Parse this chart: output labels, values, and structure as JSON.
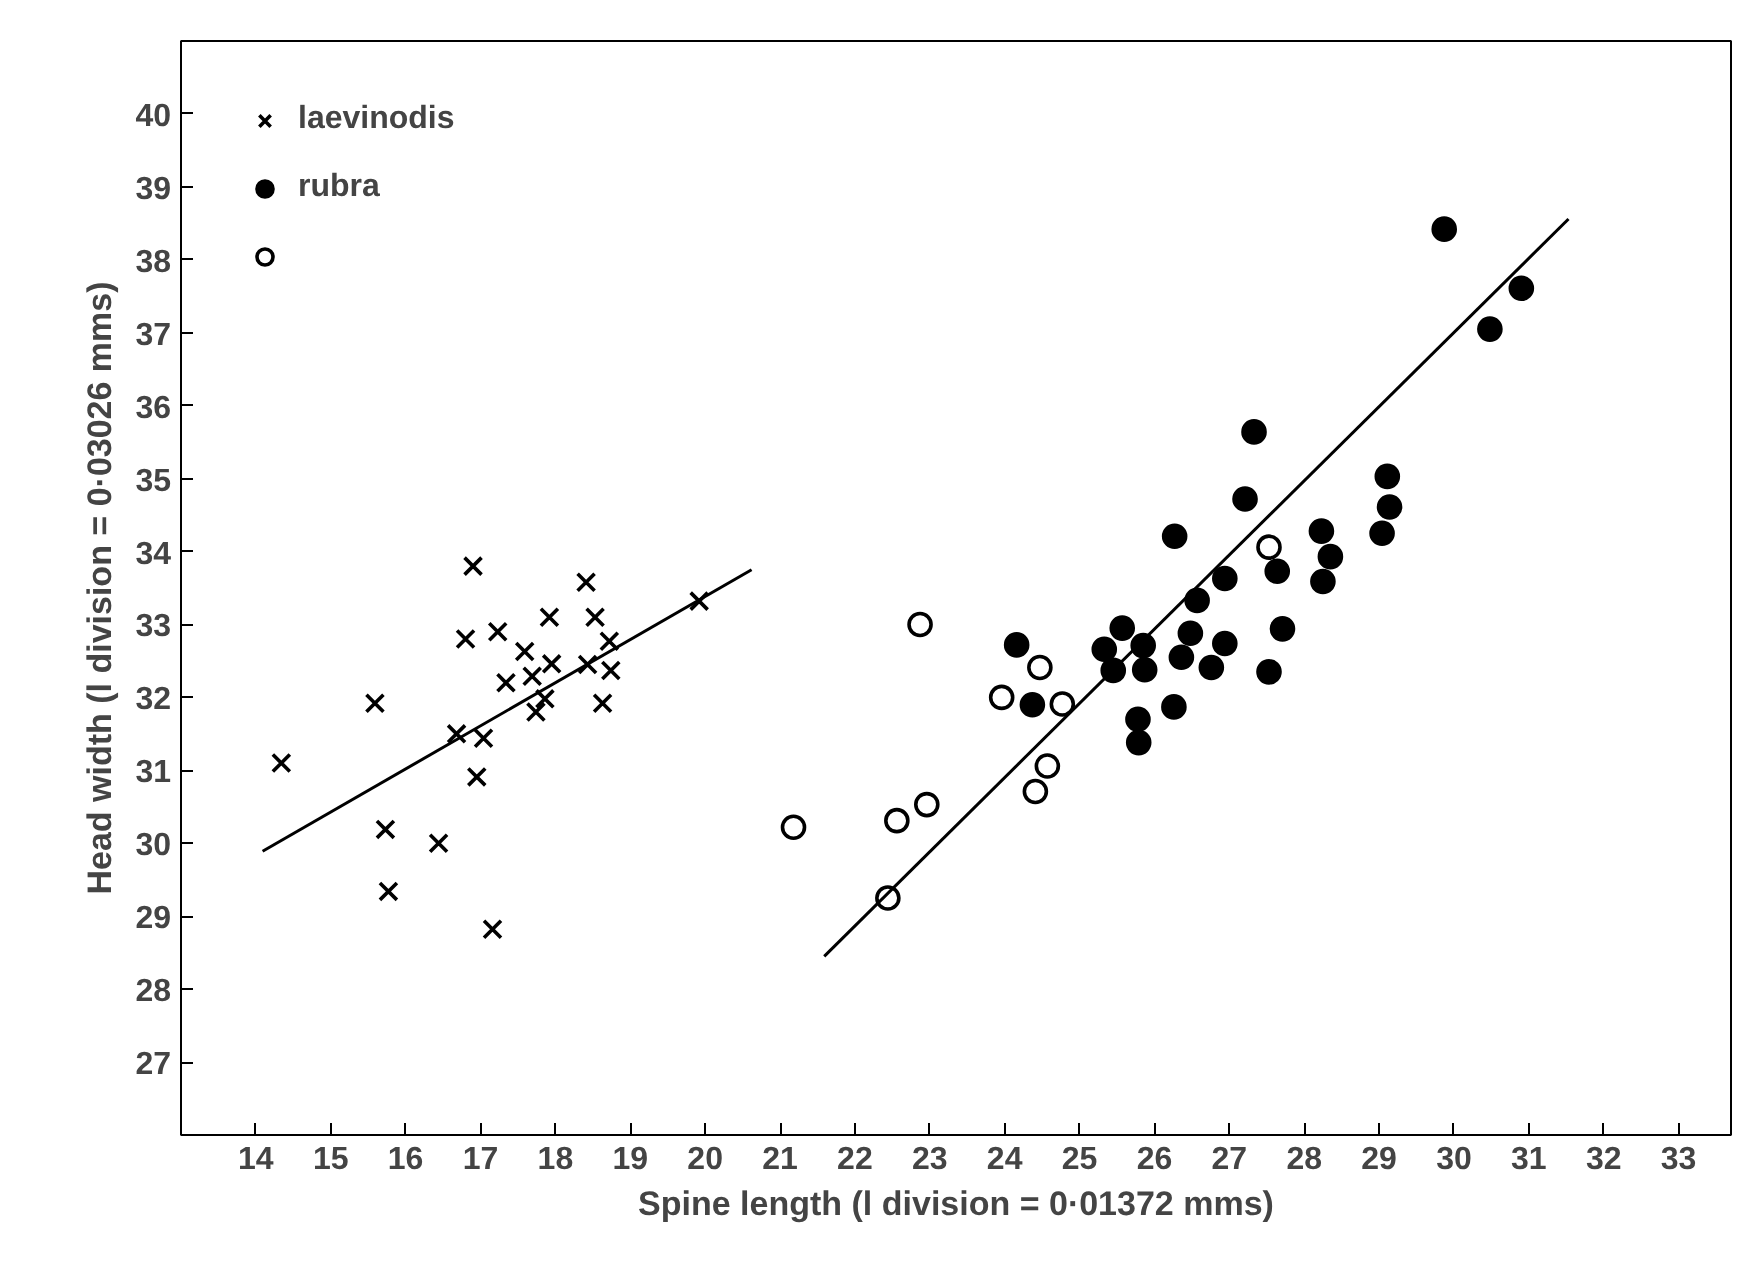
{
  "chart_data": {
    "type": "scatter",
    "xlabel": "Spine length (l division = 0·01372 mms)",
    "ylabel": "Head width (l division = 0·03026 mms)",
    "xlim": [
      13,
      33.7
    ],
    "ylim": [
      26,
      41
    ],
    "xticks": [
      14,
      15,
      16,
      17,
      18,
      19,
      20,
      21,
      22,
      23,
      24,
      25,
      26,
      27,
      28,
      29,
      30,
      31,
      32,
      33
    ],
    "yticks": [
      27,
      28,
      29,
      30,
      31,
      32,
      33,
      34,
      35,
      36,
      37,
      38,
      39,
      40
    ],
    "grid": false,
    "legend": "top left",
    "series": [
      {
        "name": "laevinodis",
        "color": "#000000",
        "marker": "cross",
        "x": [
          14.34,
          15.59,
          15.73,
          15.77,
          16.44,
          16.68,
          16.8,
          16.9,
          16.95,
          17.04,
          17.16,
          17.23,
          17.34,
          17.59,
          17.69,
          17.74,
          17.86,
          17.92,
          17.95,
          18.41,
          18.43,
          18.53,
          18.63,
          18.72,
          18.74,
          19.92
        ],
        "values": [
          31.1,
          31.92,
          30.19,
          29.34,
          30.0,
          31.5,
          32.8,
          33.8,
          30.91,
          31.44,
          28.82,
          32.9,
          32.2,
          32.63,
          32.29,
          31.8,
          31.98,
          33.1,
          32.46,
          33.58,
          32.45,
          33.1,
          31.92,
          32.77,
          32.37,
          33.32
        ]
      },
      {
        "name": "rubra",
        "color": "#000000",
        "marker": "circle",
        "x": [
          24.16,
          24.37,
          25.33,
          25.45,
          25.57,
          25.85,
          25.87,
          25.78,
          25.79,
          26.26,
          26.27,
          26.36,
          26.48,
          26.57,
          26.76,
          26.94,
          26.94,
          27.21,
          27.33,
          27.53,
          27.64,
          27.71,
          28.23,
          28.25,
          28.35,
          29.04,
          29.11,
          29.14,
          29.87,
          30.48,
          30.9
        ],
        "values": [
          32.72,
          31.9,
          32.66,
          32.37,
          32.95,
          32.71,
          32.38,
          31.7,
          31.38,
          31.87,
          34.21,
          32.55,
          32.88,
          33.33,
          32.41,
          33.63,
          32.74,
          34.72,
          35.64,
          32.35,
          33.73,
          32.94,
          34.28,
          33.59,
          33.93,
          34.25,
          35.03,
          34.61,
          38.42,
          37.05,
          37.61
        ]
      },
      {
        "color": "#ffffff",
        "marker": "circle",
        "x": [
          21.18,
          22.44,
          22.56,
          22.96,
          22.87,
          23.96,
          24.41,
          24.47,
          24.57,
          24.77,
          27.53
        ],
        "values": [
          30.22,
          29.25,
          30.31,
          30.53,
          33.0,
          32.0,
          30.71,
          32.41,
          31.06,
          31.91,
          34.06
        ]
      },
      {
        "type": "line",
        "color": "#000000",
        "x": [
          14.09,
          20.62
        ],
        "values": [
          29.89,
          33.75
        ]
      },
      {
        "type": "line",
        "color": "#000000",
        "x": [
          21.59,
          31.53
        ],
        "values": [
          28.45,
          38.56
        ]
      }
    ]
  }
}
